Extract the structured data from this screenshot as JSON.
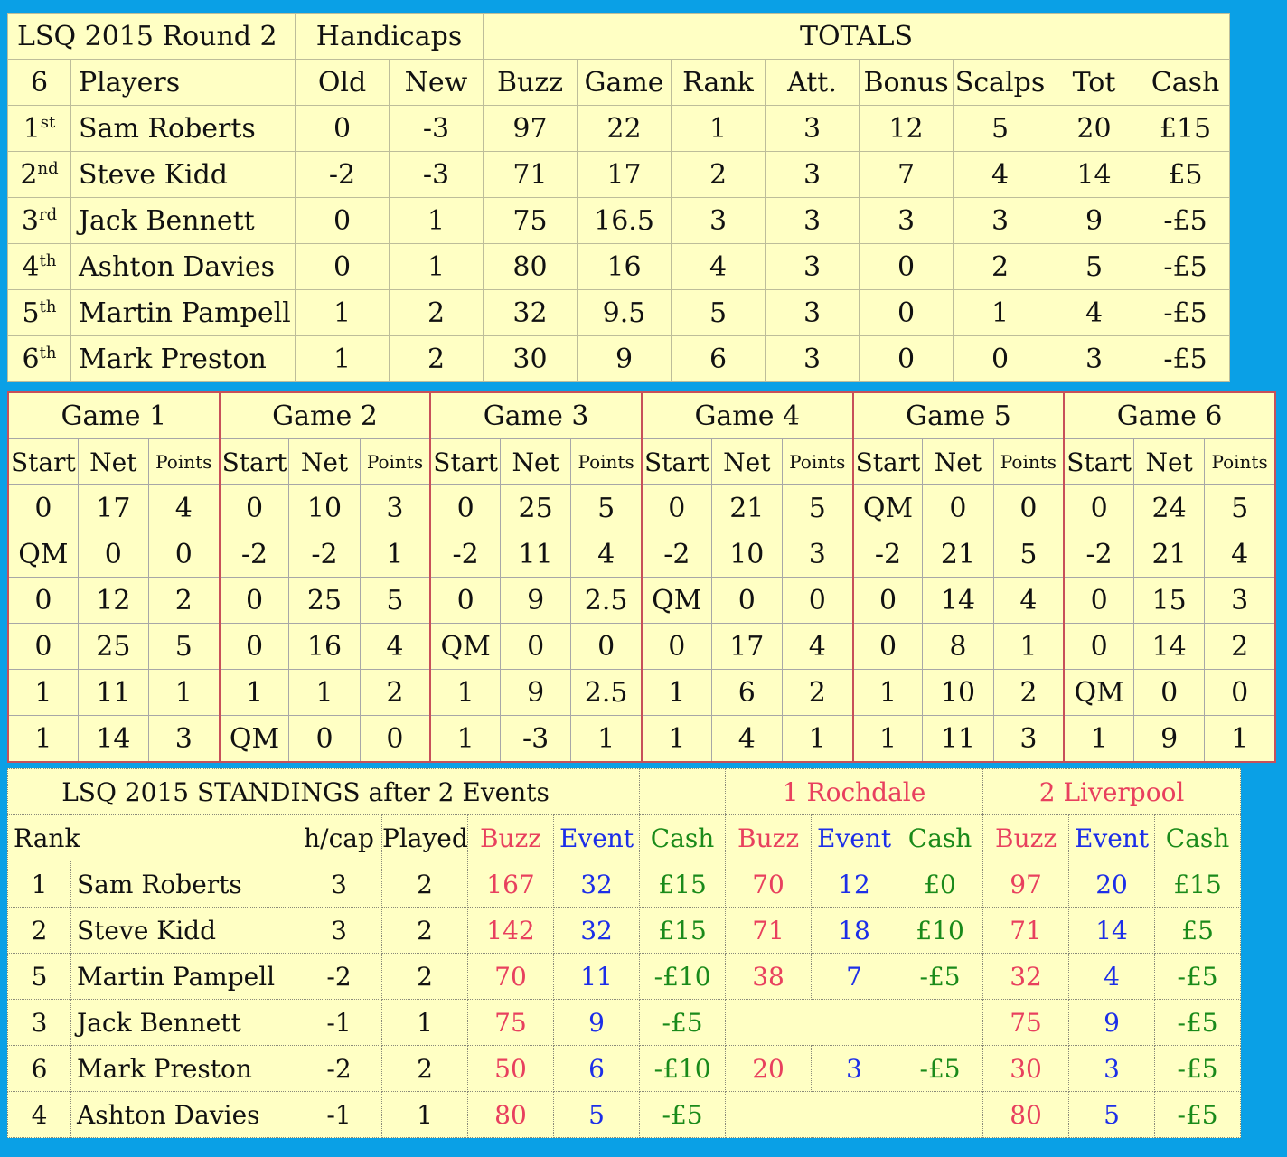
{
  "round": {
    "title": "LSQ 2015 Round  2",
    "handicaps_label": "Handicaps",
    "totals_label": "TOTALS",
    "headers": [
      "6",
      "Players",
      "Old",
      "New",
      "Buzz",
      "Game",
      "Rank",
      "Att.",
      "Bonus",
      "Scalps",
      "Tot",
      "Cash"
    ],
    "rows": [
      {
        "pos": "1",
        "suffix": "st",
        "name": "Sam Roberts",
        "old": "0",
        "new": "-3",
        "buzz": "97",
        "game": "22",
        "rank": "1",
        "att": "3",
        "bonus": "12",
        "scalps": "5",
        "tot": "20",
        "cash": "£15"
      },
      {
        "pos": "2",
        "suffix": "nd",
        "name": "Steve Kidd",
        "old": "-2",
        "new": "-3",
        "buzz": "71",
        "game": "17",
        "rank": "2",
        "att": "3",
        "bonus": "7",
        "scalps": "4",
        "tot": "14",
        "cash": "£5"
      },
      {
        "pos": "3",
        "suffix": "rd",
        "name": "Jack Bennett",
        "old": "0",
        "new": "1",
        "buzz": "75",
        "game": "16.5",
        "rank": "3",
        "att": "3",
        "bonus": "3",
        "scalps": "3",
        "tot": "9",
        "cash": "-£5"
      },
      {
        "pos": "4",
        "suffix": "th",
        "name": "Ashton Davies",
        "old": "0",
        "new": "1",
        "buzz": "80",
        "game": "16",
        "rank": "4",
        "att": "3",
        "bonus": "0",
        "scalps": "2",
        "tot": "5",
        "cash": "-£5"
      },
      {
        "pos": "5",
        "suffix": "th",
        "name": "Martin Pampell",
        "old": "1",
        "new": "2",
        "buzz": "32",
        "game": "9.5",
        "rank": "5",
        "att": "3",
        "bonus": "0",
        "scalps": "1",
        "tot": "4",
        "cash": "-£5"
      },
      {
        "pos": "6",
        "suffix": "th",
        "name": "Mark Preston",
        "old": "1",
        "new": "2",
        "buzz": "30",
        "game": "9",
        "rank": "6",
        "att": "3",
        "bonus": "0",
        "scalps": "0",
        "tot": "3",
        "cash": "-£5"
      }
    ]
  },
  "games": {
    "titles": [
      "Game 1",
      "Game 2",
      "Game 3",
      "Game 4",
      "Game 5",
      "Game 6"
    ],
    "sub_headers": [
      "Start",
      "Net",
      "Points"
    ],
    "rows": [
      [
        [
          "0",
          "17",
          "4"
        ],
        [
          "0",
          "10",
          "3"
        ],
        [
          "0",
          "25",
          "5"
        ],
        [
          "0",
          "21",
          "5"
        ],
        [
          "QM",
          "0",
          "0"
        ],
        [
          "0",
          "24",
          "5"
        ]
      ],
      [
        [
          "QM",
          "0",
          "0"
        ],
        [
          "-2",
          "-2",
          "1"
        ],
        [
          "-2",
          "11",
          "4"
        ],
        [
          "-2",
          "10",
          "3"
        ],
        [
          "-2",
          "21",
          "5"
        ],
        [
          "-2",
          "21",
          "4"
        ]
      ],
      [
        [
          "0",
          "12",
          "2"
        ],
        [
          "0",
          "25",
          "5"
        ],
        [
          "0",
          "9",
          "2.5"
        ],
        [
          "QM",
          "0",
          "0"
        ],
        [
          "0",
          "14",
          "4"
        ],
        [
          "0",
          "15",
          "3"
        ]
      ],
      [
        [
          "0",
          "25",
          "5"
        ],
        [
          "0",
          "16",
          "4"
        ],
        [
          "QM",
          "0",
          "0"
        ],
        [
          "0",
          "17",
          "4"
        ],
        [
          "0",
          "8",
          "1"
        ],
        [
          "0",
          "14",
          "2"
        ]
      ],
      [
        [
          "1",
          "11",
          "1"
        ],
        [
          "1",
          "1",
          "2"
        ],
        [
          "1",
          "9",
          "2.5"
        ],
        [
          "1",
          "6",
          "2"
        ],
        [
          "1",
          "10",
          "2"
        ],
        [
          "QM",
          "0",
          "0"
        ]
      ],
      [
        [
          "1",
          "14",
          "3"
        ],
        [
          "QM",
          "0",
          "0"
        ],
        [
          "1",
          "-3",
          "1"
        ],
        [
          "1",
          "4",
          "1"
        ],
        [
          "1",
          "11",
          "3"
        ],
        [
          "1",
          "9",
          "1"
        ]
      ]
    ]
  },
  "standings": {
    "title": "LSQ 2015 STANDINGS after 2 Events",
    "event1": "1 Rochdale",
    "event2": "2 Liverpool",
    "headers": [
      "Rank",
      "h/cap",
      "Played",
      "Buzz",
      "Event",
      "Cash",
      "Buzz",
      "Event",
      "Cash",
      "Buzz",
      "Event",
      "Cash"
    ],
    "rows": [
      {
        "rank": "1",
        "name": "Sam Roberts",
        "hcap": "3",
        "played": "2",
        "buzz": "167",
        "event": "32",
        "cash": "£15",
        "e1": [
          "70",
          "12",
          "£0"
        ],
        "e2": [
          "97",
          "20",
          "£15"
        ]
      },
      {
        "rank": "2",
        "name": "Steve Kidd",
        "hcap": "3",
        "played": "2",
        "buzz": "142",
        "event": "32",
        "cash": "£15",
        "e1": [
          "71",
          "18",
          "£10"
        ],
        "e2": [
          "71",
          "14",
          "£5"
        ]
      },
      {
        "rank": "5",
        "name": "Martin Pampell",
        "hcap": "-2",
        "played": "2",
        "buzz": "70",
        "event": "11",
        "cash": "-£10",
        "e1": [
          "38",
          "7",
          "-£5"
        ],
        "e2": [
          "32",
          "4",
          "-£5"
        ]
      },
      {
        "rank": "3",
        "name": "Jack Bennett",
        "hcap": "-1",
        "played": "1",
        "buzz": "75",
        "event": "9",
        "cash": "-£5",
        "e1": [
          "",
          "",
          ""
        ],
        "e2": [
          "75",
          "9",
          "-£5"
        ]
      },
      {
        "rank": "6",
        "name": "Mark Preston",
        "hcap": "-2",
        "played": "2",
        "buzz": "50",
        "event": "6",
        "cash": "-£10",
        "e1": [
          "20",
          "3",
          "-£5"
        ],
        "e2": [
          "30",
          "3",
          "-£5"
        ]
      },
      {
        "rank": "4",
        "name": "Ashton Davies",
        "hcap": "-1",
        "played": "1",
        "buzz": "80",
        "event": "5",
        "cash": "-£5",
        "e1": [
          "",
          "",
          ""
        ],
        "e2": [
          "80",
          "5",
          "-£5"
        ]
      }
    ]
  }
}
